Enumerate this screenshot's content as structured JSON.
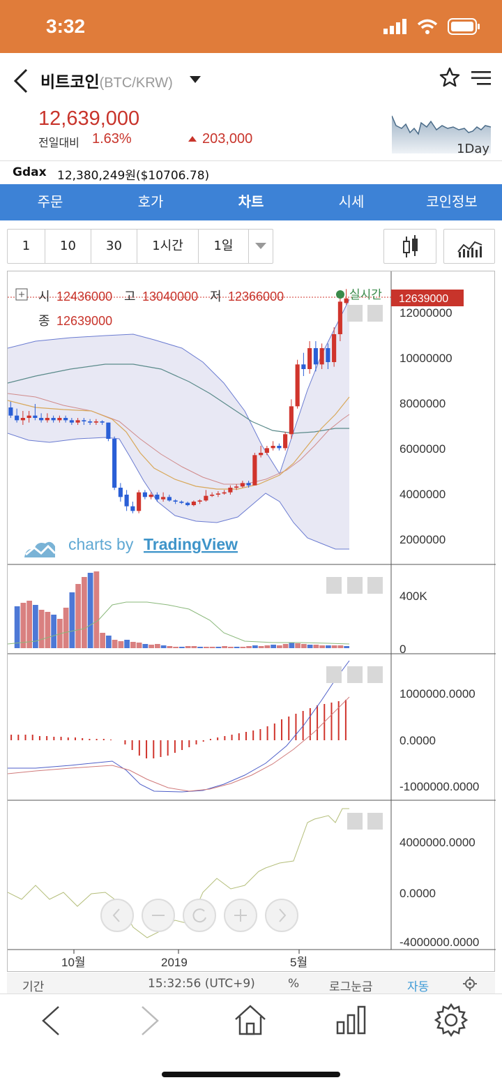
{
  "status": {
    "time": "3:32"
  },
  "header": {
    "name": "비트코인",
    "pair": "(BTC/KRW)",
    "price": "12,639,000",
    "change_label": "전일대비",
    "change_pct": "1.63%",
    "change_amt": "203,000",
    "mini_chart_label": "1Day"
  },
  "gdax": {
    "label": "Gdax",
    "value": "12,380,249원($10706.78)"
  },
  "tabs": [
    {
      "label": "주문"
    },
    {
      "label": "호가"
    },
    {
      "label": "차트"
    },
    {
      "label": "시세"
    },
    {
      "label": "코인정보"
    }
  ],
  "active_tab": "차트",
  "intervals": [
    "1",
    "10",
    "30",
    "1시간",
    "1일"
  ],
  "ohlc": {
    "open_label": "시",
    "open": "12436000",
    "high_label": "고",
    "high": "13040000",
    "low_label": "저",
    "low": "12366000",
    "close_label": "종",
    "close": "12639000"
  },
  "realtime_label": "실시간",
  "price_tag": "12639000",
  "watermark": {
    "prefix": "charts by ",
    "brand": "TradingView"
  },
  "axes": {
    "price_ticks": [
      "12000000",
      "10000000",
      "8000000",
      "6000000",
      "4000000",
      "2000000"
    ],
    "volume_ticks": [
      "400K",
      "0"
    ],
    "macd_ticks": [
      "1000000.0000",
      "0.0000",
      "-1000000.0000"
    ],
    "osc_ticks": [
      "4000000.0000",
      "0.0000",
      "-4000000.0000"
    ],
    "x_ticks": [
      "10월",
      "2019",
      "5월"
    ]
  },
  "bottom_bar": {
    "period": "기간",
    "time": "15:32:56 (UTC+9)",
    "percent": "%",
    "log": "로그눈금",
    "auto": "자동"
  },
  "colors": {
    "up": "#d0342c",
    "down": "#2a5fd6",
    "accent": "#3d82d6",
    "status_bar": "#e07c3a"
  },
  "chart_data": {
    "type": "candlestick",
    "series": [
      {
        "name": "BTC/KRW",
        "values": [
          [
            7950000.0,
            7600000.0,
            8200000.0,
            7500000.0
          ],
          [
            7600000.0,
            7400000.0,
            7900000.0,
            7300000.0
          ],
          [
            7400000.0,
            7500000.0,
            7800000.0,
            7200000.0
          ],
          [
            7500000.0,
            7600000.0,
            7800000.0,
            7300000.0
          ],
          [
            7600000.0,
            7500000.0,
            8100000.0,
            7400000.0
          ],
          [
            7500000.0,
            7400000.0,
            7700000.0,
            7300000.0
          ],
          [
            7400000.0,
            7500000.0,
            7700000.0,
            7300000.0
          ],
          [
            7500000.0,
            7400000.0,
            7600000.0,
            7300000.0
          ],
          [
            7400000.0,
            7500000.0,
            7600000.0,
            7300000.0
          ],
          [
            7500000.0,
            7400000.0,
            7600000.0,
            7300000.0
          ],
          [
            7400000.0,
            7300000.0,
            7500000.0,
            7200000.0
          ],
          [
            7300000.0,
            7400000.0,
            7500000.0,
            7200000.0
          ],
          [
            7400000.0,
            7350000.0,
            7500000.0,
            7200000.0
          ],
          [
            7350000.0,
            7300000.0,
            7450000.0,
            7200000.0
          ],
          [
            7300000.0,
            7350000.0,
            7450000.0,
            7200000.0
          ],
          [
            7350000.0,
            7300000.0,
            7400000.0,
            7200000.0
          ],
          [
            7300000.0,
            6600000.0,
            7300000.0,
            6500000.0
          ],
          [
            6600000.0,
            4500000.0,
            6700000.0,
            4400000.0
          ],
          [
            4500000.0,
            4100000.0,
            4700000.0,
            3900000.0
          ],
          [
            4200000.0,
            3700000.0,
            4400000.0,
            3500000.0
          ],
          [
            3700000.0,
            3500000.0,
            3900000.0,
            3400000.0
          ],
          [
            3500000.0,
            4300000.0,
            4400000.0,
            3400000.0
          ],
          [
            4300000.0,
            4100000.0,
            4400000.0,
            4000000.0
          ],
          [
            4100000.0,
            4200000.0,
            4300000.0,
            4000000.0
          ],
          [
            4200000.0,
            4000000.0,
            4300000.0,
            3900000.0
          ],
          [
            4000000.0,
            4100000.0,
            4300000.0,
            3900000.0
          ],
          [
            4100000.0,
            3950000.0,
            4200000.0,
            3900000.0
          ],
          [
            3950000.0,
            3900000.0,
            4000000.0,
            3800000.0
          ],
          [
            3900000.0,
            3850000.0,
            3950000.0,
            3800000.0
          ],
          [
            3850000.0,
            3750000.0,
            3900000.0,
            3700000.0
          ],
          [
            3750000.0,
            3900000.0,
            3950000.0,
            3700000.0
          ],
          [
            3900000.0,
            3950000.0,
            4000000.0,
            3800000.0
          ],
          [
            3950000.0,
            4150000.0,
            4400000.0,
            3900000.0
          ],
          [
            4150000.0,
            4200000.0,
            4300000.0,
            4100000.0
          ],
          [
            4200000.0,
            4250000.0,
            4350000.0,
            4100000.0
          ],
          [
            4250000.0,
            4300000.0,
            4400000.0,
            4200000.0
          ],
          [
            4300000.0,
            4500000.0,
            4600000.0,
            4200000.0
          ],
          [
            4500000.0,
            4550000.0,
            4650000.0,
            4400000.0
          ],
          [
            4550000.0,
            4700000.0,
            4800000.0,
            4500000.0
          ],
          [
            4700000.0,
            4600000.0,
            4800000.0,
            4500000.0
          ],
          [
            4600000.0,
            5900000.0,
            6000000.0,
            4600000.0
          ],
          [
            5900000.0,
            6000000.0,
            6300000.0,
            5800000.0
          ],
          [
            6000000.0,
            6200000.0,
            6300000.0,
            5900000.0
          ],
          [
            6200000.0,
            6300000.0,
            6500000.0,
            6100000.0
          ],
          [
            6300000.0,
            6200000.0,
            6400000.0,
            6100000.0
          ],
          [
            6200000.0,
            6800000.0,
            6900000.0,
            6100000.0
          ],
          [
            6800000.0,
            8000000.0,
            8300000.0,
            6600000.0
          ],
          [
            8000000.0,
            9800000.0,
            10000000.0,
            7900000.0
          ],
          [
            9800000.0,
            9600000.0,
            10300000.0,
            9300000.0
          ],
          [
            9600000.0,
            10500000.0,
            10800000.0,
            9400000.0
          ],
          [
            10500000.0,
            9800000.0,
            10800000.0,
            9500000.0
          ],
          [
            9800000.0,
            10500000.0,
            10700000.0,
            9600000.0
          ],
          [
            10500000.0,
            9900000.0,
            10700000.0,
            9600000.0
          ],
          [
            9900000.0,
            11100000.0,
            11400000.0,
            9700000.0
          ],
          [
            11100000.0,
            12500000.0,
            12800000.0,
            10800000.0
          ],
          [
            12440000.0,
            12640000.0,
            13040000.0,
            12370000.0
          ]
        ]
      }
    ],
    "ylim": [
      1500000,
      13500000
    ]
  }
}
